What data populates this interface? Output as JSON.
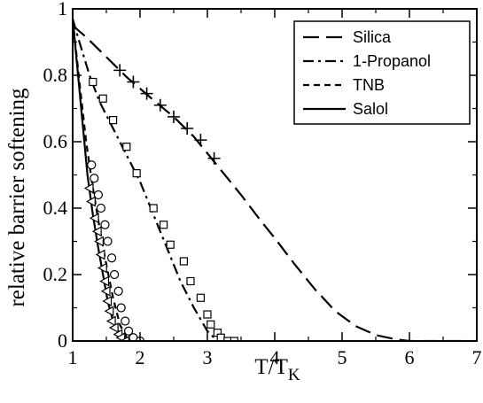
{
  "chart_data": {
    "type": "line",
    "xlabel": "T/T",
    "xlabel_sub": "K",
    "ylabel": "relative barrier softening",
    "xlim": [
      1,
      7
    ],
    "ylim": [
      0,
      1
    ],
    "x_ticks": [
      "1",
      "2",
      "3",
      "4",
      "5",
      "6",
      "7"
    ],
    "y_ticks": [
      "0",
      "0.2",
      "0.4",
      "0.6",
      "0.8",
      "1"
    ],
    "legend_position": "top-right",
    "series": [
      {
        "name": "Silica",
        "style": "long-dash",
        "points": [
          [
            1.0,
            0.95
          ],
          [
            1.2,
            0.915
          ],
          [
            1.5,
            0.855
          ],
          [
            1.8,
            0.795
          ],
          [
            2.0,
            0.76
          ],
          [
            2.2,
            0.725
          ],
          [
            2.5,
            0.675
          ],
          [
            2.8,
            0.615
          ],
          [
            3.0,
            0.565
          ],
          [
            3.2,
            0.515
          ],
          [
            3.5,
            0.44
          ],
          [
            3.8,
            0.36
          ],
          [
            4.0,
            0.31
          ],
          [
            4.3,
            0.23
          ],
          [
            4.6,
            0.155
          ],
          [
            4.9,
            0.09
          ],
          [
            5.2,
            0.045
          ],
          [
            5.5,
            0.018
          ],
          [
            5.8,
            0.005
          ],
          [
            6.0,
            0.0
          ],
          [
            6.3,
            0.0
          ],
          [
            6.8,
            0.0
          ]
        ],
        "markers": [
          [
            1.7,
            0.815
          ],
          [
            1.9,
            0.78
          ],
          [
            2.1,
            0.745
          ],
          [
            2.3,
            0.71
          ],
          [
            2.5,
            0.675
          ],
          [
            2.7,
            0.64
          ],
          [
            2.9,
            0.605
          ],
          [
            3.1,
            0.55
          ]
        ],
        "marker_symbol": "plus"
      },
      {
        "name": "1-Propanol",
        "style": "dash-dot",
        "points": [
          [
            1.0,
            0.97
          ],
          [
            1.1,
            0.9
          ],
          [
            1.25,
            0.8
          ],
          [
            1.4,
            0.72
          ],
          [
            1.6,
            0.64
          ],
          [
            1.8,
            0.56
          ],
          [
            2.0,
            0.48
          ],
          [
            2.2,
            0.38
          ],
          [
            2.4,
            0.28
          ],
          [
            2.6,
            0.18
          ],
          [
            2.8,
            0.1
          ],
          [
            3.0,
            0.03
          ],
          [
            3.1,
            0.01
          ],
          [
            3.3,
            0.0
          ],
          [
            3.4,
            0.0
          ]
        ],
        "markers": [
          [
            1.3,
            0.78
          ],
          [
            1.45,
            0.73
          ],
          [
            1.6,
            0.665
          ],
          [
            1.8,
            0.585
          ],
          [
            1.95,
            0.505
          ],
          [
            2.2,
            0.4
          ],
          [
            2.35,
            0.35
          ],
          [
            2.45,
            0.29
          ],
          [
            2.65,
            0.24
          ],
          [
            2.75,
            0.18
          ],
          [
            2.9,
            0.13
          ],
          [
            3.0,
            0.08
          ],
          [
            3.05,
            0.05
          ],
          [
            3.15,
            0.025
          ],
          [
            3.2,
            0.01
          ],
          [
            3.3,
            0.0
          ],
          [
            3.4,
            0.0
          ]
        ],
        "marker_symbol": "square"
      },
      {
        "name": "TNB",
        "style": "short-dash",
        "points": [
          [
            1.0,
            0.97
          ],
          [
            1.1,
            0.78
          ],
          [
            1.2,
            0.6
          ],
          [
            1.3,
            0.46
          ],
          [
            1.4,
            0.34
          ],
          [
            1.5,
            0.23
          ],
          [
            1.6,
            0.13
          ],
          [
            1.7,
            0.05
          ],
          [
            1.8,
            0.01
          ],
          [
            1.9,
            0.0
          ],
          [
            2.0,
            0.0
          ]
        ],
        "markers": [
          [
            1.28,
            0.53
          ],
          [
            1.32,
            0.49
          ],
          [
            1.38,
            0.44
          ],
          [
            1.42,
            0.4
          ],
          [
            1.48,
            0.35
          ],
          [
            1.52,
            0.3
          ],
          [
            1.58,
            0.25
          ],
          [
            1.62,
            0.2
          ],
          [
            1.68,
            0.15
          ],
          [
            1.72,
            0.1
          ],
          [
            1.78,
            0.06
          ],
          [
            1.83,
            0.03
          ],
          [
            1.9,
            0.01
          ],
          [
            2.0,
            0.0
          ]
        ],
        "marker_symbol": "circle"
      },
      {
        "name": "Salol",
        "style": "solid",
        "points": [
          [
            1.0,
            0.97
          ],
          [
            1.08,
            0.8
          ],
          [
            1.15,
            0.65
          ],
          [
            1.22,
            0.5
          ],
          [
            1.3,
            0.38
          ],
          [
            1.38,
            0.28
          ],
          [
            1.45,
            0.2
          ],
          [
            1.52,
            0.12
          ],
          [
            1.6,
            0.06
          ],
          [
            1.7,
            0.02
          ],
          [
            1.8,
            0.0
          ]
        ],
        "markers": [
          [
            1.25,
            0.46
          ],
          [
            1.28,
            0.42
          ],
          [
            1.33,
            0.37
          ],
          [
            1.37,
            0.33
          ],
          [
            1.4,
            0.3
          ],
          [
            1.42,
            0.26
          ],
          [
            1.45,
            0.22
          ],
          [
            1.48,
            0.18
          ],
          [
            1.5,
            0.15
          ],
          [
            1.52,
            0.12
          ],
          [
            1.55,
            0.09
          ],
          [
            1.58,
            0.06
          ],
          [
            1.62,
            0.04
          ],
          [
            1.68,
            0.02
          ],
          [
            1.72,
            0.01
          ],
          [
            1.78,
            0.0
          ]
        ],
        "marker_symbol": "triangle-left"
      }
    ]
  }
}
